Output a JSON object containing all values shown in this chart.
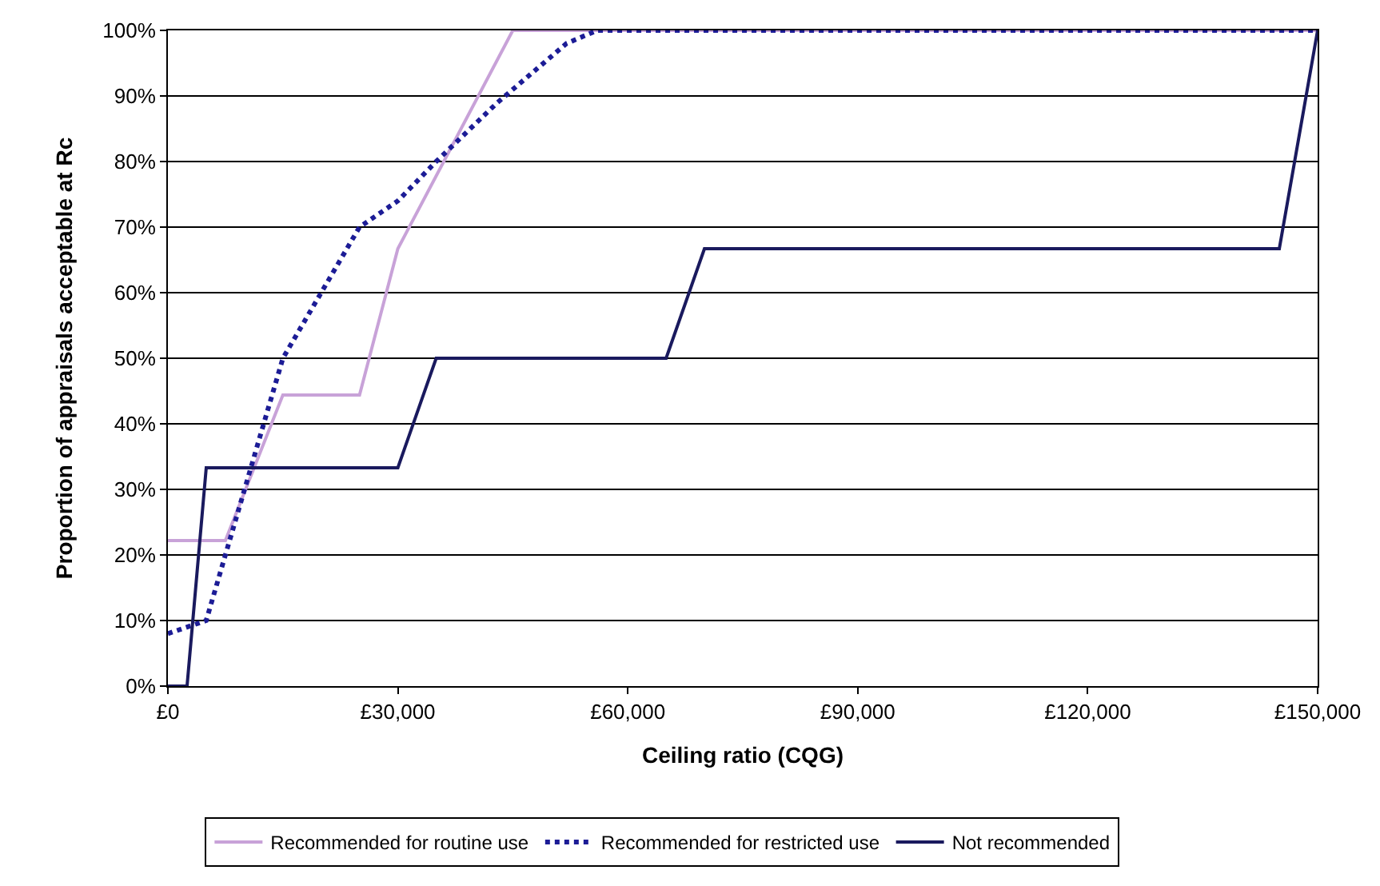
{
  "chart_data": {
    "type": "line",
    "xlabel": "Ceiling ratio (CQG)",
    "ylabel": "Proportion of appraisals acceptable at Rc",
    "xlim": [
      0,
      150000
    ],
    "xticks": [
      {
        "value": 0,
        "label": "£0"
      },
      {
        "value": 30000,
        "label": "£30,000"
      },
      {
        "value": 60000,
        "label": "£60,000"
      },
      {
        "value": 90000,
        "label": "£90,000"
      },
      {
        "value": 120000,
        "label": "£120,000"
      },
      {
        "value": 150000,
        "label": "£150,000"
      }
    ],
    "ylim": [
      0,
      100
    ],
    "yticks": [
      {
        "value": 0,
        "label": "0%"
      },
      {
        "value": 10,
        "label": "10%"
      },
      {
        "value": 20,
        "label": "20%"
      },
      {
        "value": 30,
        "label": "30%"
      },
      {
        "value": 40,
        "label": "40%"
      },
      {
        "value": 50,
        "label": "50%"
      },
      {
        "value": 60,
        "label": "60%"
      },
      {
        "value": 70,
        "label": "70%"
      },
      {
        "value": 80,
        "label": "80%"
      },
      {
        "value": 90,
        "label": "90%"
      },
      {
        "value": 100,
        "label": "100%"
      }
    ],
    "grid": "y",
    "legend": "bottom",
    "marker": "none",
    "series": [
      {
        "name": "Recommended for routine use",
        "color": "#c8a2d8",
        "line_style": "solid",
        "x": [
          0,
          7500,
          15000,
          25000,
          30000,
          45000,
          150000
        ],
        "values": [
          22.2,
          22.2,
          44.4,
          44.4,
          66.7,
          100,
          100
        ]
      },
      {
        "name": "Recommended for restricted use",
        "color": "#1c1c96",
        "line_style": "dotted",
        "x": [
          0,
          5000,
          15000,
          25000,
          30000,
          35000,
          43000,
          52000,
          56000,
          150000
        ],
        "values": [
          8,
          10,
          50,
          70,
          74,
          80,
          89,
          98,
          100,
          100
        ]
      },
      {
        "name": "Not recommended",
        "color": "#1a1a5e",
        "line_style": "solid",
        "x": [
          0,
          2500,
          5000,
          30000,
          35000,
          65000,
          70000,
          145000,
          150000
        ],
        "values": [
          0,
          0,
          33.3,
          33.3,
          50,
          50,
          66.7,
          66.7,
          100
        ]
      }
    ]
  }
}
